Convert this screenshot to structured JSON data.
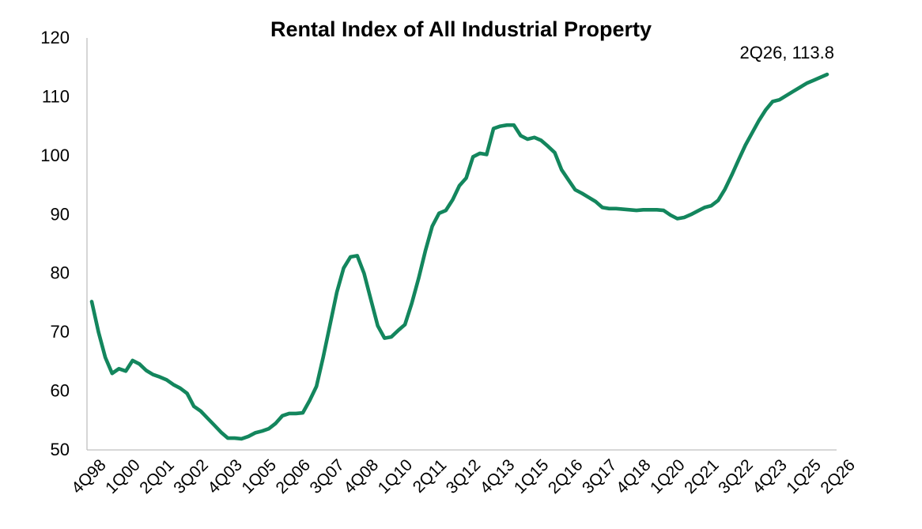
{
  "chart_data": {
    "type": "line",
    "title": "Rental Index of All Industrial Property",
    "xlabel": "",
    "ylabel": "",
    "ylim": [
      50,
      120
    ],
    "yticks": [
      50,
      60,
      70,
      80,
      90,
      100,
      110,
      120
    ],
    "grid": false,
    "legend": "none",
    "line_color": "#13865d",
    "x_tick_labels": [
      "4Q98",
      "1Q00",
      "2Q01",
      "3Q02",
      "4Q03",
      "1Q05",
      "2Q06",
      "3Q07",
      "4Q08",
      "1Q10",
      "2Q11",
      "3Q12",
      "4Q13",
      "1Q15",
      "2Q16",
      "3Q17",
      "4Q18",
      "1Q20",
      "2Q21",
      "3Q22",
      "4Q23",
      "1Q25",
      "2Q26"
    ],
    "series": [
      {
        "values": [
          75.2,
          70.0,
          65.7,
          63.0,
          63.8,
          63.4,
          65.2,
          64.6,
          63.5,
          62.8,
          62.4,
          61.9,
          61.1,
          60.5,
          59.6,
          57.4,
          56.6,
          55.4,
          54.2,
          53.0,
          52.0,
          52.0,
          51.9,
          52.3,
          52.9,
          53.2,
          53.6,
          54.5,
          55.8,
          56.2,
          56.2,
          56.3,
          58.4,
          60.8,
          65.8,
          71.3,
          76.8,
          80.9,
          82.8,
          83.0,
          80.0,
          75.5,
          71.1,
          69.0,
          69.2,
          70.3,
          71.3,
          74.9,
          79.1,
          83.8,
          88.0,
          90.2,
          90.7,
          92.5,
          94.9,
          96.2,
          99.8,
          100.4,
          100.2,
          104.6,
          105.0,
          105.2,
          105.2,
          103.4,
          102.8,
          103.1,
          102.6,
          101.6,
          100.5,
          97.6,
          95.9,
          94.2,
          93.6,
          92.9,
          92.2,
          91.2,
          91.0,
          91.0,
          90.9,
          90.8,
          90.7,
          90.8,
          90.8,
          90.8,
          90.7,
          89.9,
          89.3,
          89.5,
          90.0,
          90.6,
          91.2,
          91.5,
          92.4,
          94.3,
          96.7,
          99.3,
          101.8,
          103.9,
          106.0,
          107.8,
          109.2,
          109.5,
          110.2,
          110.9,
          111.6,
          112.3,
          112.8,
          113.3,
          113.8
        ]
      }
    ],
    "annotations": [
      {
        "text": "2Q26, 113.8",
        "x": "2Q26",
        "y": 113.8
      }
    ]
  }
}
